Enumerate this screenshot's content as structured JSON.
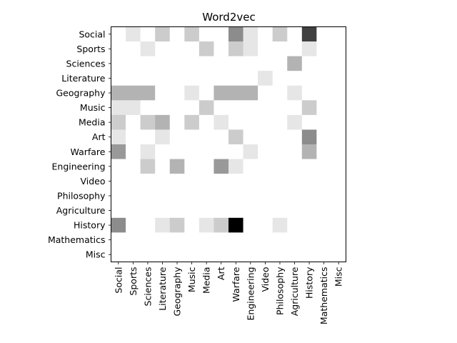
{
  "chart_data": {
    "type": "heatmap",
    "title": "Word2vec",
    "categories": [
      "Social",
      "Sports",
      "Sciences",
      "Literature",
      "Geography",
      "Music",
      "Media",
      "Art",
      "Warfare",
      "Engineering",
      "Video",
      "Philosophy",
      "Agriculture",
      "History",
      "Mathematics",
      "Misc"
    ],
    "colormap": "Greys",
    "grid": false,
    "values": [
      [
        0,
        0.1,
        0,
        0.2,
        0,
        0.2,
        0,
        0,
        0.45,
        0.1,
        0,
        0.2,
        0,
        0.75,
        0,
        0
      ],
      [
        0,
        0,
        0.1,
        0,
        0,
        0,
        0.2,
        0,
        0.2,
        0.1,
        0,
        0,
        0,
        0.1,
        0,
        0
      ],
      [
        0,
        0,
        0,
        0,
        0,
        0,
        0,
        0,
        0,
        0,
        0,
        0,
        0.3,
        0,
        0,
        0
      ],
      [
        0,
        0,
        0,
        0,
        0,
        0,
        0,
        0,
        0,
        0,
        0.1,
        0,
        0,
        0,
        0,
        0
      ],
      [
        0.3,
        0.3,
        0.3,
        0,
        0,
        0.1,
        0,
        0.3,
        0.3,
        0.3,
        0,
        0,
        0.1,
        0,
        0,
        0
      ],
      [
        0.1,
        0.1,
        0,
        0,
        0,
        0,
        0.2,
        0,
        0,
        0,
        0,
        0,
        0,
        0.2,
        0,
        0
      ],
      [
        0.2,
        0,
        0.2,
        0.3,
        0,
        0.2,
        0,
        0.1,
        0,
        0,
        0,
        0,
        0.1,
        0,
        0,
        0
      ],
      [
        0.1,
        0,
        0,
        0.1,
        0,
        0,
        0,
        0,
        0.2,
        0,
        0,
        0,
        0,
        0.45,
        0,
        0
      ],
      [
        0.4,
        0,
        0.1,
        0,
        0,
        0,
        0,
        0,
        0,
        0.1,
        0,
        0,
        0,
        0.3,
        0,
        0
      ],
      [
        0,
        0,
        0.2,
        0,
        0.3,
        0,
        0,
        0.4,
        0.1,
        0,
        0,
        0,
        0,
        0,
        0,
        0
      ],
      [
        0,
        0,
        0,
        0,
        0,
        0,
        0,
        0,
        0,
        0,
        0,
        0,
        0,
        0,
        0,
        0
      ],
      [
        0,
        0,
        0,
        0,
        0,
        0,
        0,
        0,
        0,
        0,
        0,
        0,
        0,
        0,
        0,
        0
      ],
      [
        0,
        0,
        0,
        0,
        0,
        0,
        0,
        0,
        0,
        0,
        0,
        0,
        0,
        0,
        0,
        0
      ],
      [
        0.45,
        0,
        0,
        0.1,
        0.2,
        0,
        0.1,
        0.2,
        1.0,
        0,
        0,
        0.1,
        0,
        0,
        0,
        0
      ],
      [
        0,
        0,
        0,
        0,
        0,
        0,
        0,
        0,
        0,
        0,
        0,
        0,
        0,
        0,
        0,
        0
      ],
      [
        0,
        0,
        0,
        0,
        0,
        0,
        0,
        0,
        0,
        0,
        0,
        0,
        0,
        0,
        0,
        0
      ]
    ]
  }
}
